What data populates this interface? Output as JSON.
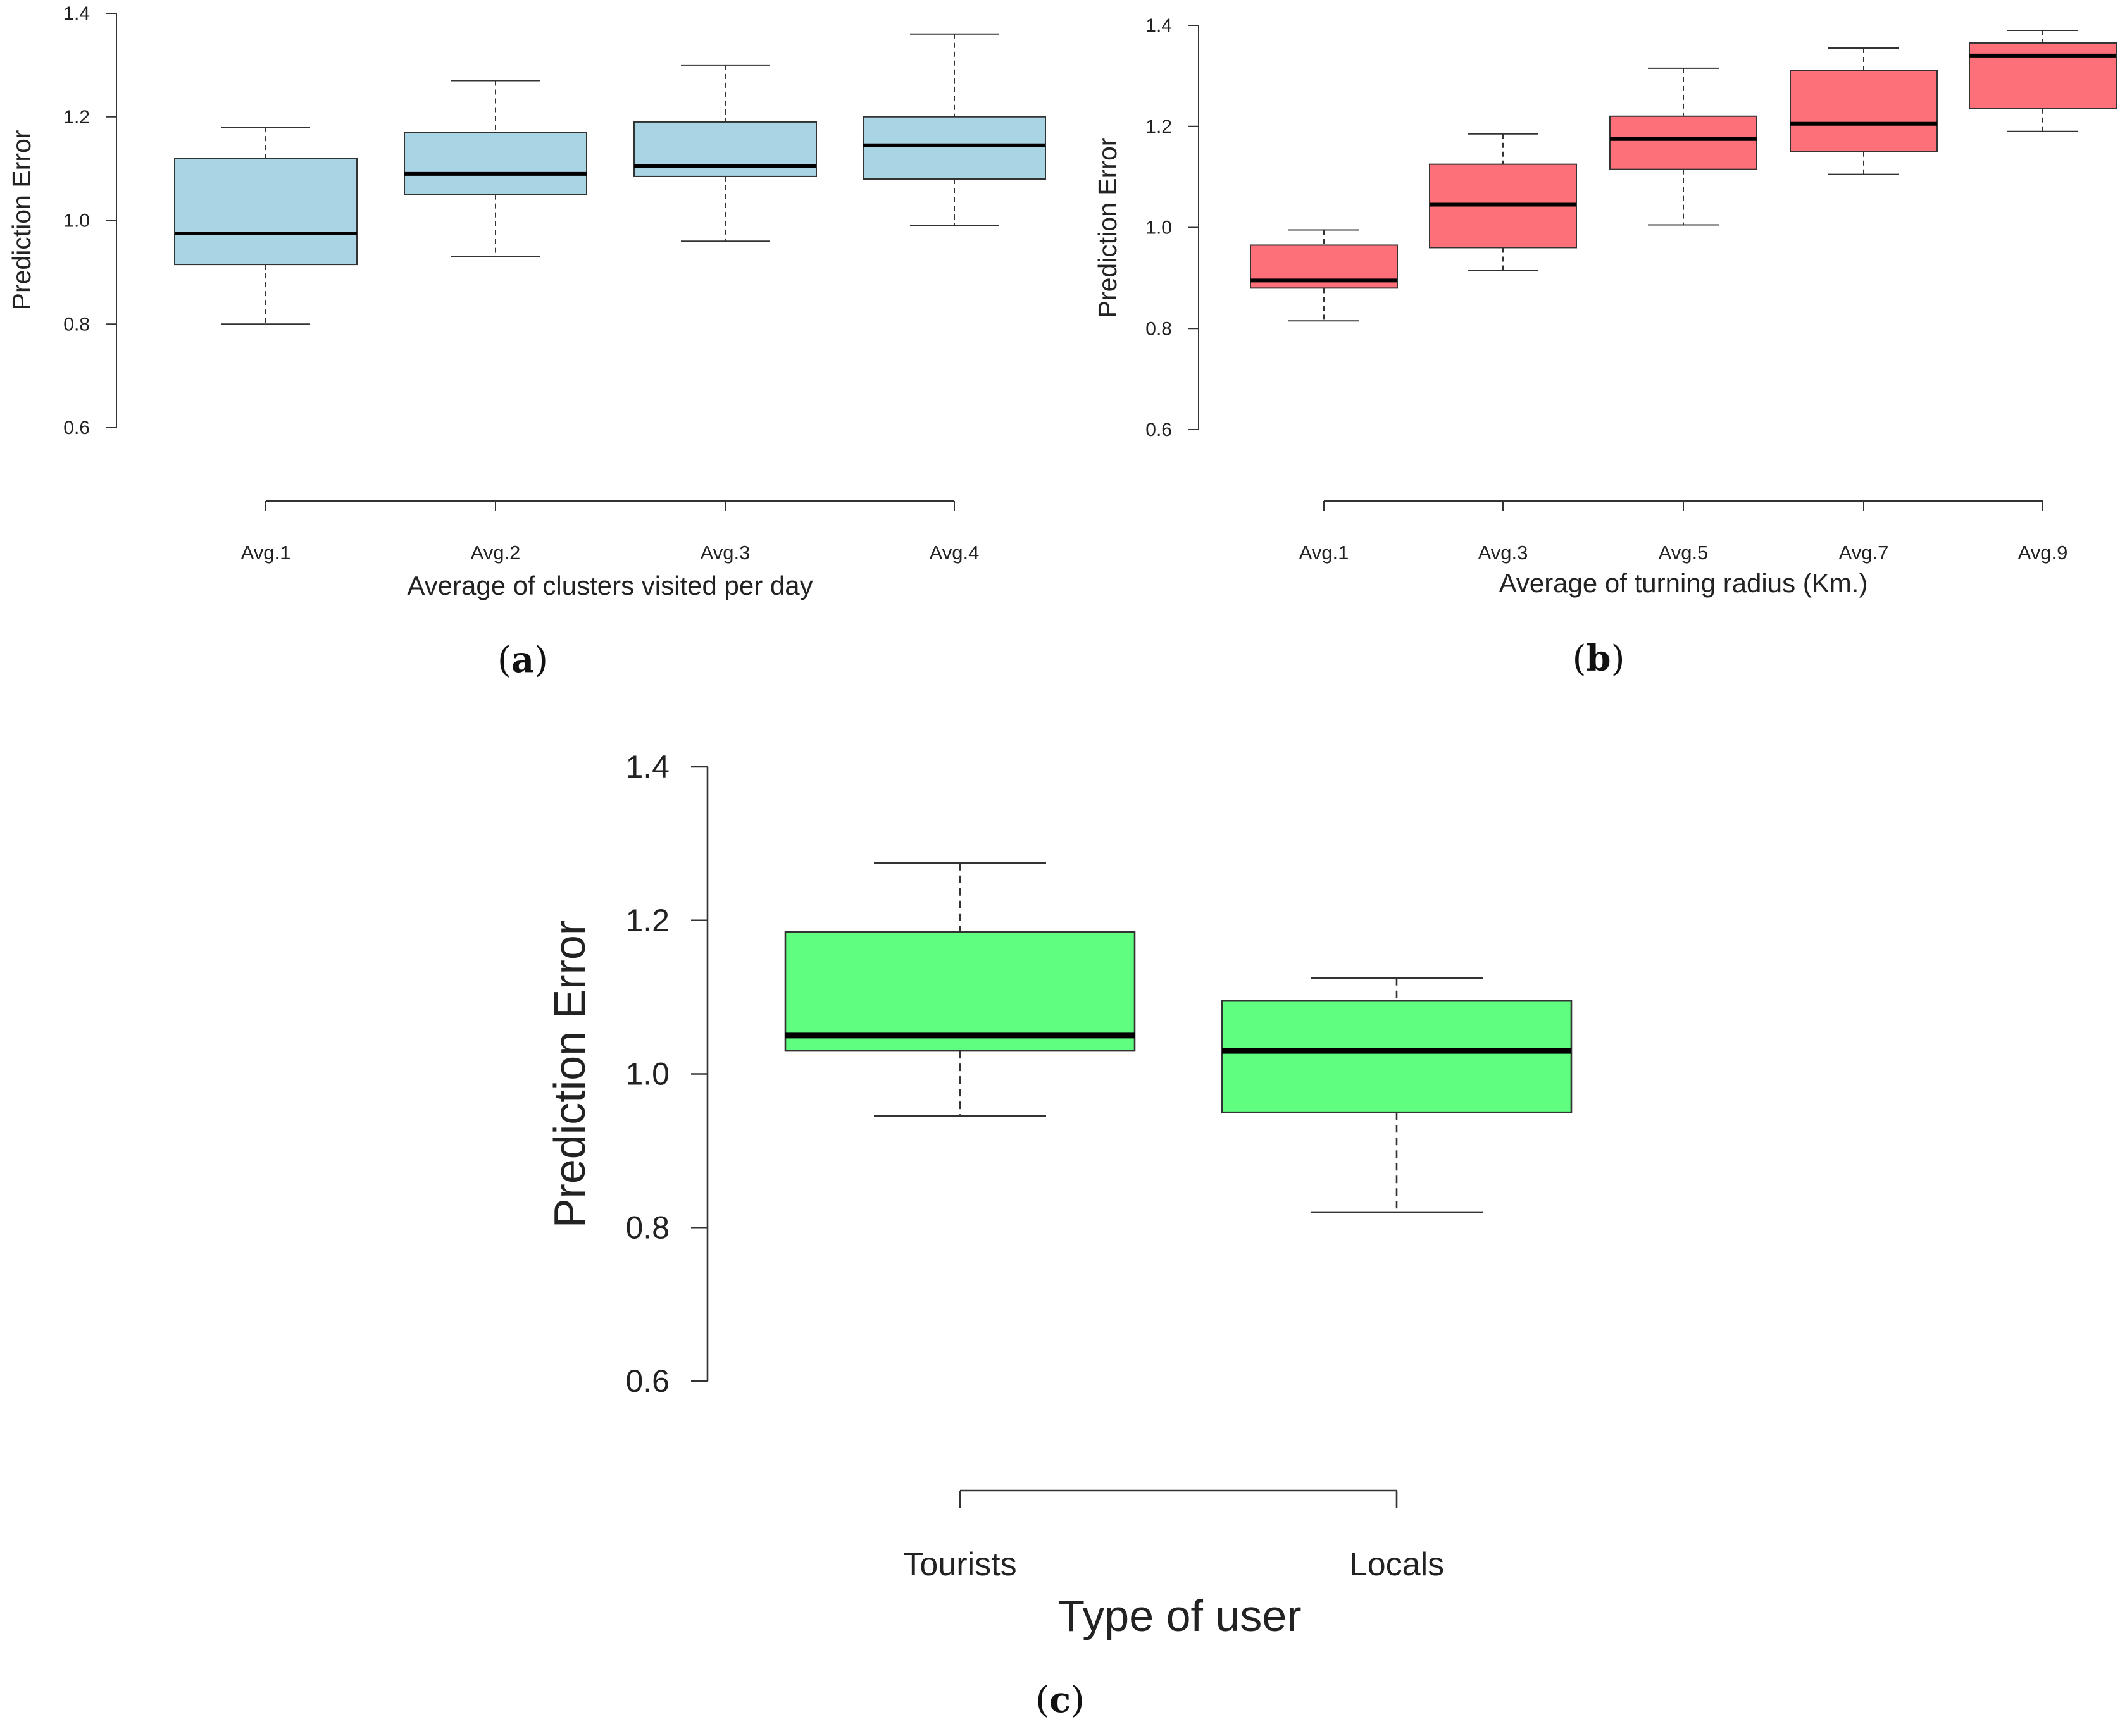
{
  "figure": {
    "panels": [
      "a",
      "b",
      "c"
    ]
  },
  "chart_data": [
    {
      "type": "boxplot",
      "panel_label": "a",
      "xlabel": "Average of clusters visited per day",
      "ylabel": "Prediction Error",
      "ylim": [
        0.6,
        1.4
      ],
      "yticks": [
        "0.6",
        "0.8",
        "1.0",
        "1.2",
        "1.4"
      ],
      "fill_color": "#a8d4e3",
      "categories": [
        "Avg.1",
        "Avg.2",
        "Avg.3",
        "Avg.4"
      ],
      "boxes": [
        {
          "min": 0.8,
          "q1": 0.915,
          "median": 0.975,
          "q3": 1.12,
          "max": 1.18
        },
        {
          "min": 0.93,
          "q1": 1.05,
          "median": 1.09,
          "q3": 1.17,
          "max": 1.27
        },
        {
          "min": 0.96,
          "q1": 1.085,
          "median": 1.105,
          "q3": 1.19,
          "max": 1.3
        },
        {
          "min": 0.99,
          "q1": 1.08,
          "median": 1.145,
          "q3": 1.2,
          "max": 1.36
        }
      ]
    },
    {
      "type": "boxplot",
      "panel_label": "b",
      "xlabel": "Average of turning radius (Km.)",
      "ylabel": "Prediction Error",
      "ylim": [
        0.6,
        1.4
      ],
      "yticks": [
        "0.6",
        "0.8",
        "1.0",
        "1.2",
        "1.4"
      ],
      "fill_color": "#fe7079",
      "categories": [
        "Avg.1",
        "Avg.3",
        "Avg.5",
        "Avg.7",
        "Avg.9"
      ],
      "boxes": [
        {
          "min": 0.815,
          "q1": 0.88,
          "median": 0.895,
          "q3": 0.965,
          "max": 0.995
        },
        {
          "min": 0.915,
          "q1": 0.96,
          "median": 1.045,
          "q3": 1.125,
          "max": 1.185
        },
        {
          "min": 1.005,
          "q1": 1.115,
          "median": 1.175,
          "q3": 1.22,
          "max": 1.315
        },
        {
          "min": 1.105,
          "q1": 1.15,
          "median": 1.205,
          "q3": 1.31,
          "max": 1.355
        },
        {
          "min": 1.19,
          "q1": 1.235,
          "median": 1.34,
          "q3": 1.365,
          "max": 1.39
        }
      ]
    },
    {
      "type": "boxplot",
      "panel_label": "c",
      "xlabel": "Type of user",
      "ylabel": "Prediction Error",
      "ylim": [
        0.6,
        1.4
      ],
      "yticks": [
        "0.6",
        "0.8",
        "1.0",
        "1.2",
        "1.4"
      ],
      "fill_color": "#5ffe80",
      "categories": [
        "Tourists",
        "Locals"
      ],
      "boxes": [
        {
          "min": 0.945,
          "q1": 1.03,
          "median": 1.05,
          "q3": 1.185,
          "max": 1.275
        },
        {
          "min": 0.82,
          "q1": 0.95,
          "median": 1.03,
          "q3": 1.095,
          "max": 1.125
        }
      ]
    }
  ]
}
